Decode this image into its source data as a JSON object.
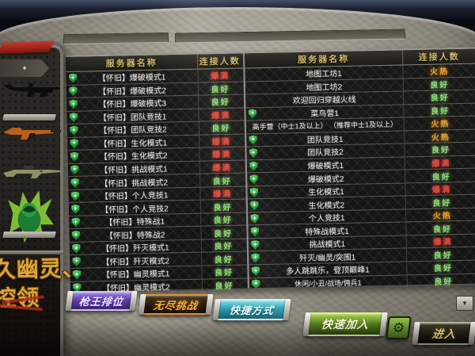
{
  "status_colors": {
    "爆满": "#e2483e",
    "良好": "#8fd876",
    "火热": "#efa22a"
  },
  "tables": [
    {
      "headers": {
        "name": "服务器名称",
        "count": "连接人数"
      },
      "rows": [
        {
          "name": "【怀旧】爆破模式1",
          "status": "爆满",
          "shield": true
        },
        {
          "name": "【怀旧】爆破模式2",
          "status": "良好",
          "shield": true
        },
        {
          "name": "【怀旧】爆破模式3",
          "status": "良好",
          "shield": true
        },
        {
          "name": "【怀旧】团队竞技1",
          "status": "爆满",
          "shield": true
        },
        {
          "name": "【怀旧】团队竞技2",
          "status": "良好",
          "shield": true
        },
        {
          "name": "【怀旧】生化模式1",
          "status": "爆满",
          "shield": true
        },
        {
          "name": "【怀旧】生化模式2",
          "status": "爆满",
          "shield": true
        },
        {
          "name": "【怀旧】挑战模式1",
          "status": "爆满",
          "shield": true
        },
        {
          "name": "【怀旧】挑战模式2",
          "status": "良好",
          "shield": true
        },
        {
          "name": "【怀旧】个人竞技1",
          "status": "爆满",
          "shield": true
        },
        {
          "name": "【怀旧】个人竞技2",
          "status": "良好",
          "shield": true
        },
        {
          "name": "【怀旧】特殊战1",
          "status": "良好",
          "shield": true
        },
        {
          "name": "【怀旧】特殊战2",
          "status": "良好",
          "shield": true
        },
        {
          "name": "【怀旧】歼灭模式1",
          "status": "良好",
          "shield": true
        },
        {
          "name": "【怀旧】歼灭模式2",
          "status": "良好",
          "shield": true
        },
        {
          "name": "【怀旧】幽灵模式1",
          "status": "良好",
          "shield": true
        },
        {
          "name": "【怀旧】幽灵模式2",
          "status": "良好",
          "shield": true
        }
      ]
    },
    {
      "headers": {
        "name": "服务器名称",
        "count": "连接人数"
      },
      "rows": [
        {
          "name": "地图工坊1",
          "status": "火热",
          "shield": false
        },
        {
          "name": "地图工坊2",
          "status": "良好",
          "shield": false
        },
        {
          "name": "欢迎回归穿越火线",
          "status": "良好",
          "shield": false
        },
        {
          "name": "菜鸟营1",
          "status": "良好",
          "shield": true
        },
        {
          "name": "高手营（中士1及以上） （推荐中士1及以上）",
          "status": "火热",
          "shield": false
        },
        {
          "name": "团队竞技1",
          "status": "火热",
          "shield": true
        },
        {
          "name": "团队竞技2",
          "status": "良好",
          "shield": true
        },
        {
          "name": "爆破模式1",
          "status": "爆满",
          "shield": true
        },
        {
          "name": "爆破模式2",
          "status": "良好",
          "shield": true
        },
        {
          "name": "生化模式1",
          "status": "爆满",
          "shield": true
        },
        {
          "name": "生化模式2",
          "status": "良好",
          "shield": true
        },
        {
          "name": "个人竞技1",
          "status": "火热",
          "shield": true
        },
        {
          "name": "特殊战模式1",
          "status": "良好",
          "shield": true
        },
        {
          "name": "挑战模式1",
          "status": "爆满",
          "shield": true
        },
        {
          "name": "歼灭/幽灵/突围1",
          "status": "良好",
          "shield": true
        },
        {
          "name": "多人跳跳乐，登顶巅峰1",
          "status": "良好",
          "shield": true
        },
        {
          "name": "休闲/小丑/战场/佣兵1",
          "status": "良好",
          "shield": true
        }
      ]
    }
  ],
  "footer_buttons": [
    {
      "label": "枪王排位"
    },
    {
      "label": "无尽挑战"
    },
    {
      "label": "快捷方式"
    },
    {
      "label": "快速加入"
    },
    {
      "label": "进入"
    }
  ],
  "icons": {
    "gear": "⚙",
    "scroll_down": "▼",
    "shield_plus": "+",
    "emblem": "✦"
  },
  "promo": {
    "line1": "久幽灵、",
    "line2": "控领"
  }
}
